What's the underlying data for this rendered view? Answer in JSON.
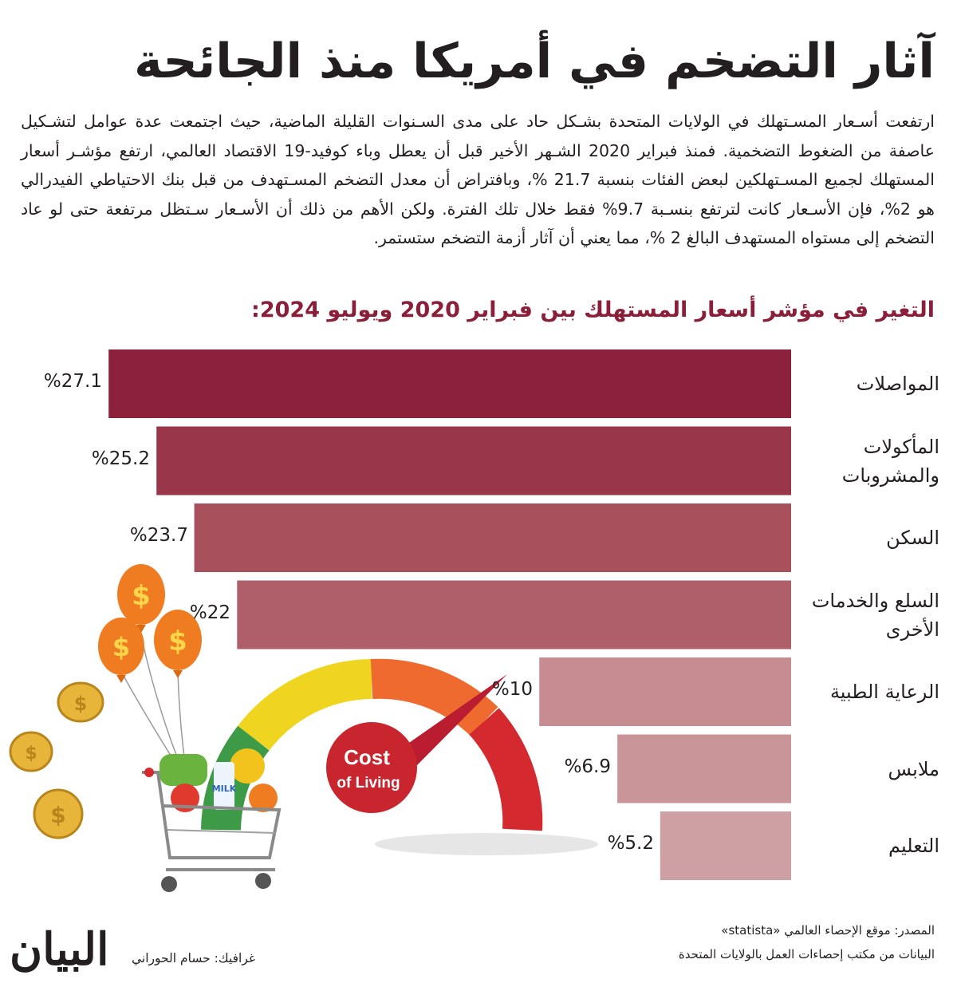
{
  "title": "آثار التضخم في أمريكا منذ الجائحة",
  "intro": "ارتفعت أسـعار المسـتهلك في الولايات المتحدة بشـكل حاد على مدى السـنوات القليلة الماضية، حيث اجتمعت عدة عوامل لتشـكيل عاصفة من الضغوط التضخمية. فمنذ فبراير 2020 الشـهر الأخير قبل أن يعطل وباء كوفيد-19 الاقتصاد العالمي، ارتفع مؤشـر أسعار المستهلك لجميع المسـتهلكين لبعض الفئات بنسبة 21.7 %، وبافتراض أن معدل التضخم المسـتهدف من قبل بنك الاحتياطي الفيدرالي هو 2%، فإن الأسـعار كانت لترتفع بنسـبة 9.7% فقط خلال تلك الفترة. ولكن الأهم من ذلك أن الأسـعار سـتظل مرتفعة حتى لو عاد التضخم إلى مستواه المستهدف البالغ 2 %، مما يعني أن آثار أزمة التضخم ستستمر.",
  "chart_heading": "التغير في مؤشر أسعار المستهلك بين فبراير 2020 ويوليو 2024:",
  "chart_data": {
    "type": "bar",
    "orientation": "horizontal",
    "title": "التغير في مؤشر أسعار المستهلك بين فبراير 2020 ويوليو 2024:",
    "categories": [
      "المواصلات",
      "المأكولات والمشروبات",
      "السكن",
      "السلع والخدمات الأخرى",
      "الرعاية الطبية",
      "ملابس",
      "التعليم"
    ],
    "values": [
      27.1,
      25.2,
      23.7,
      22,
      10,
      6.9,
      5.2
    ],
    "value_labels": [
      "%27.1",
      "%25.2",
      "%23.7",
      "%22",
      "%10",
      "%6.9",
      "%5.2"
    ],
    "colors": [
      "#8b213a",
      "#9a3649",
      "#a9505d",
      "#ae5f69",
      "#c68c92",
      "#c99599",
      "#cfa0a3"
    ],
    "unit": "%",
    "xlim": [
      0,
      28.5
    ]
  },
  "illustration": {
    "gauge_text_line1": "Cost",
    "gauge_text_line2": "of Living",
    "milk_label": "MILK",
    "currency_symbol": "$"
  },
  "source": {
    "line1": "المصدر: موقع الإحصاء العالمي «statista»",
    "line2": "البيانات من مكتب إحصاءات العمل بالولايات المتحدة"
  },
  "credit": "غرافيك: حسام الحوراني",
  "logo": "البيان"
}
